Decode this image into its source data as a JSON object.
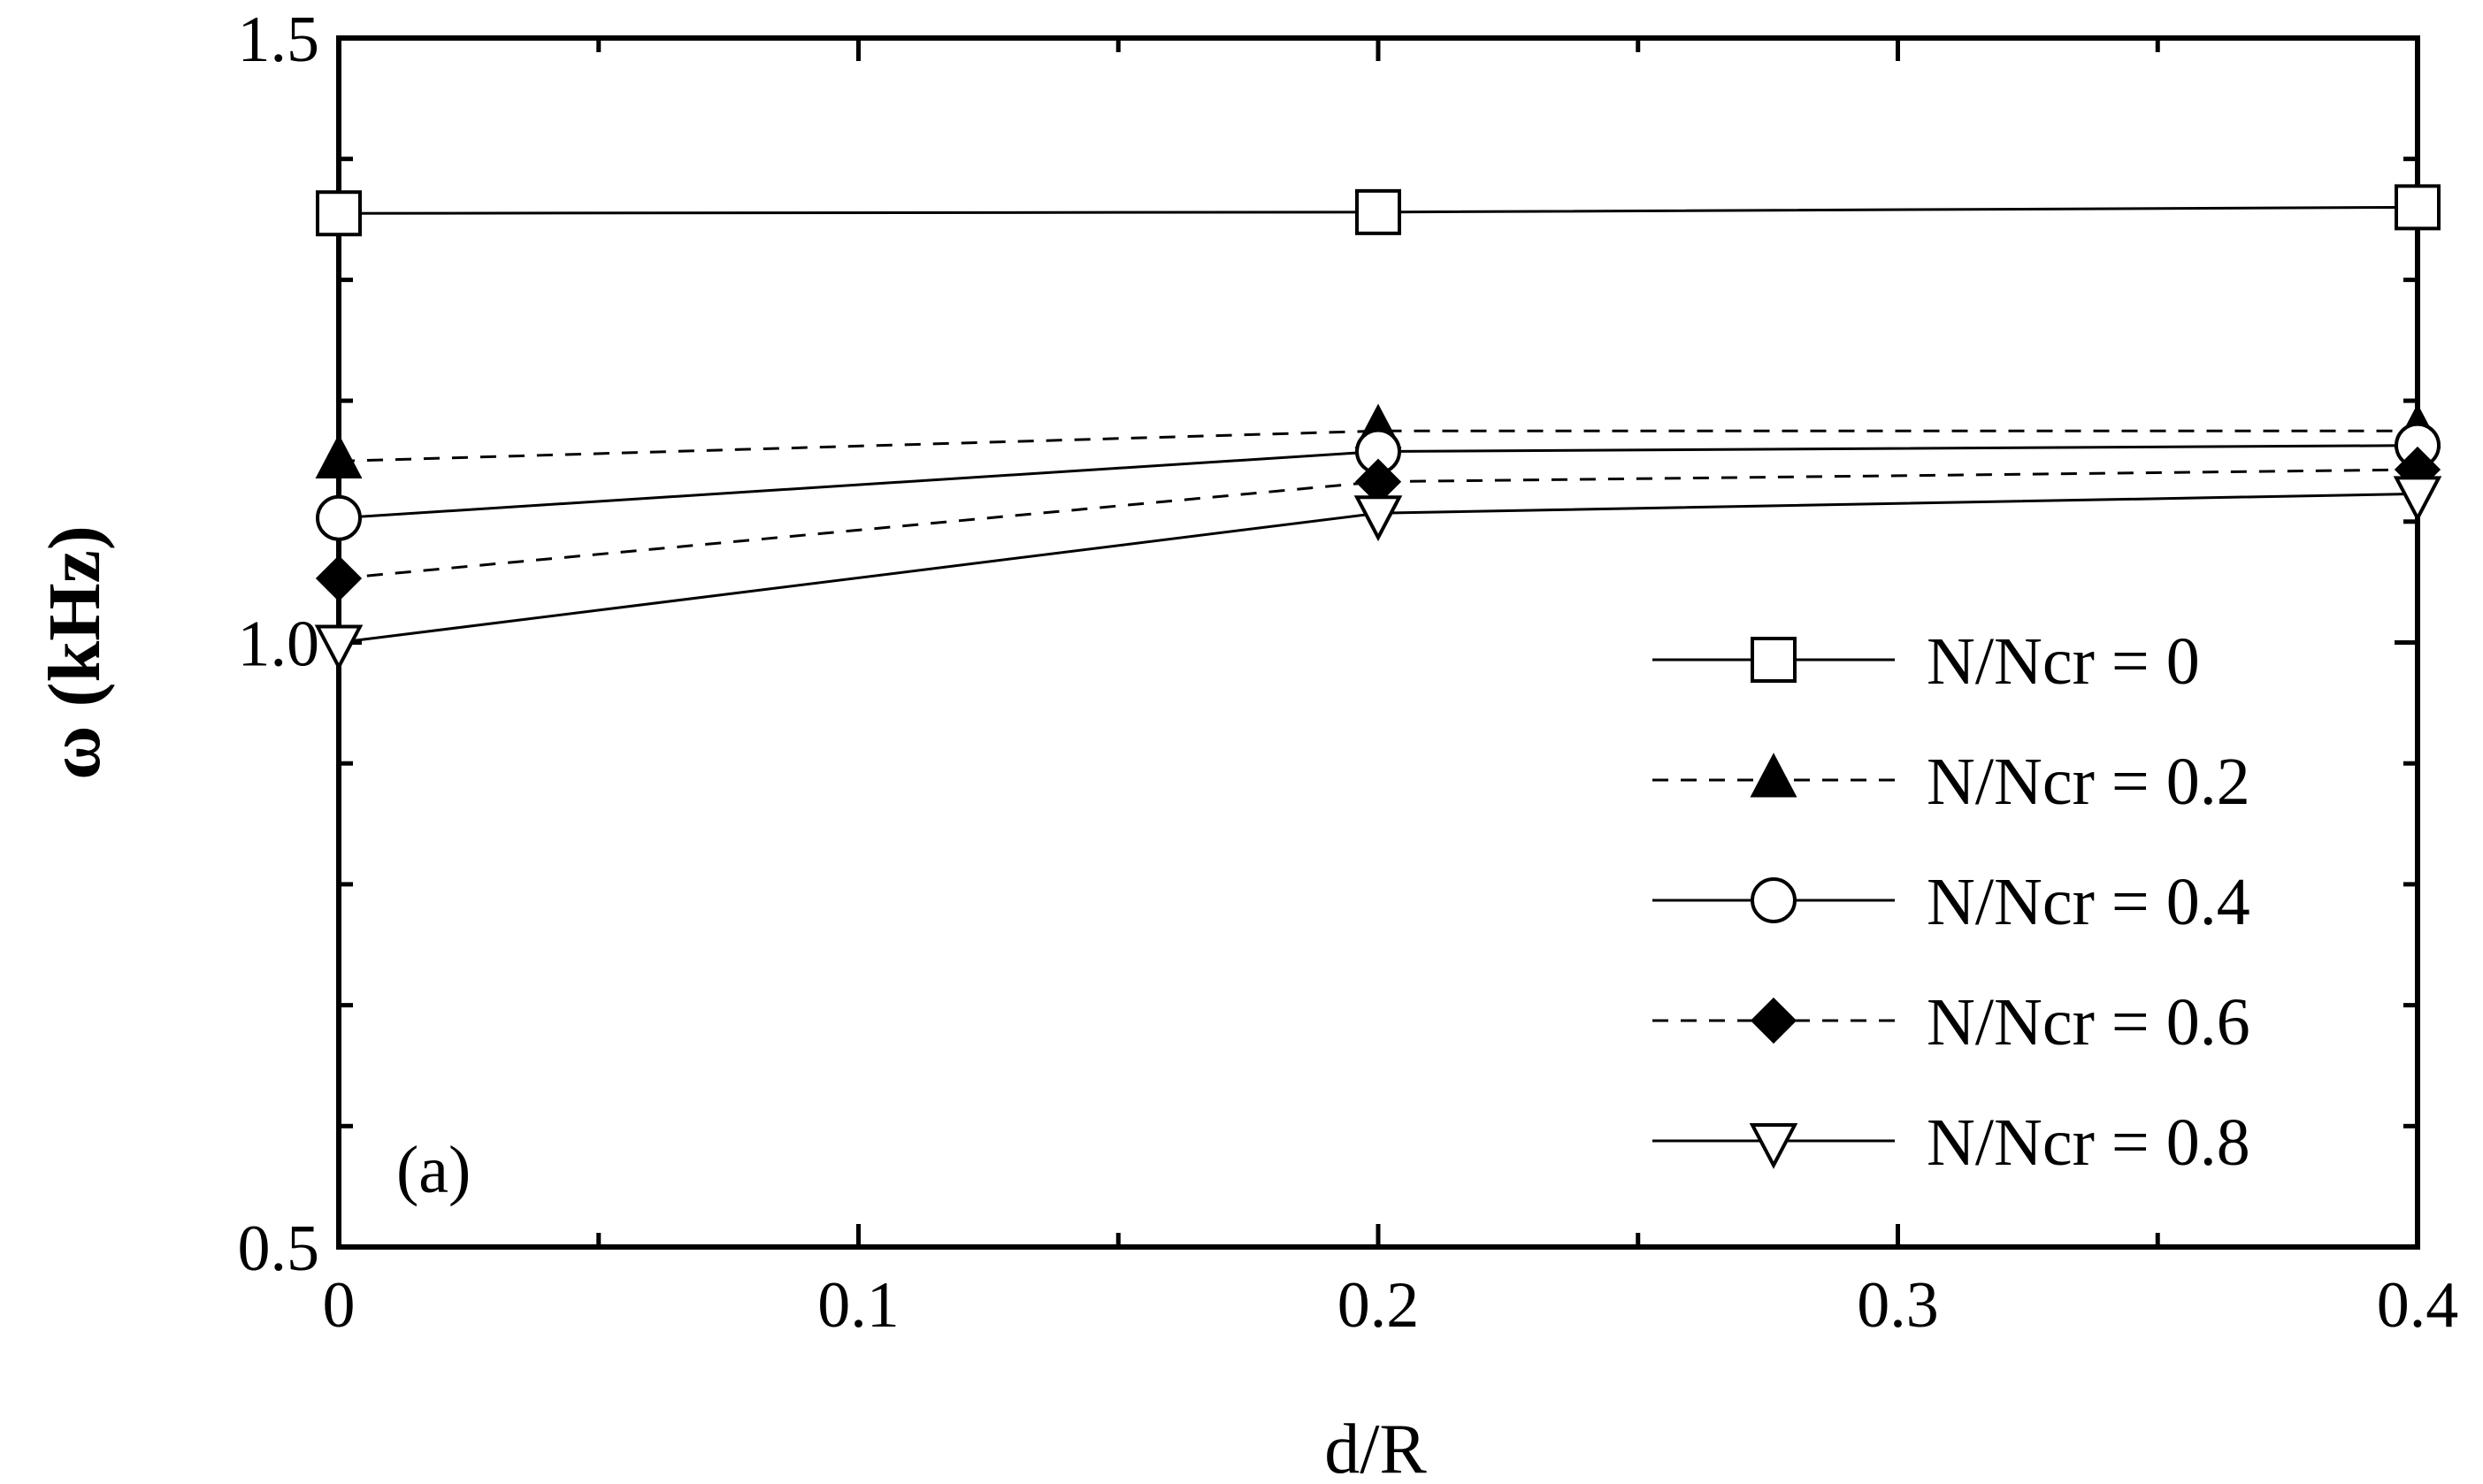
{
  "chart_data": {
    "type": "line",
    "xlabel": "d/R",
    "ylabel": "ω (kHz)",
    "panel_label": "(a)",
    "xlim": [
      0,
      0.4
    ],
    "ylim": [
      0.5,
      1.5
    ],
    "x_ticks": [
      0,
      0.1,
      0.2,
      0.3,
      0.4
    ],
    "x_tick_labels": [
      "0",
      "0.1",
      "0.2",
      "0.3",
      "0.4"
    ],
    "y_ticks": [
      0.5,
      1.0,
      1.5
    ],
    "y_tick_labels": [
      "0.5",
      "1.0",
      "1.5"
    ],
    "grid": false,
    "legend_position": "bottom-right",
    "x": [
      0,
      0.2,
      0.4
    ],
    "series": [
      {
        "name": "N/Ncr = 0",
        "values": [
          1.355,
          1.356,
          1.36
        ],
        "marker": "square-open",
        "dash": "solid"
      },
      {
        "name": "N/Ncr = 0.2",
        "values": [
          1.15,
          1.175,
          1.175
        ],
        "marker": "triangle-up-filled",
        "dash": "dashed"
      },
      {
        "name": "N/Ncr = 0.4",
        "values": [
          1.103,
          1.158,
          1.163
        ],
        "marker": "circle-open",
        "dash": "solid"
      },
      {
        "name": "N/Ncr = 0.6",
        "values": [
          1.053,
          1.133,
          1.143
        ],
        "marker": "diamond-filled",
        "dash": "dashed"
      },
      {
        "name": "N/Ncr = 0.8",
        "values": [
          1.0,
          1.107,
          1.123
        ],
        "marker": "triangle-down-open",
        "dash": "solid"
      }
    ]
  }
}
